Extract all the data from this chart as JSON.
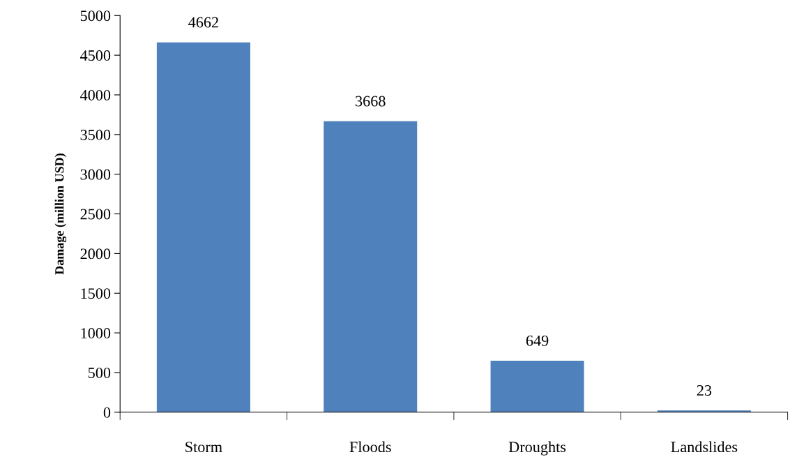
{
  "chart_data": {
    "type": "bar",
    "ylabel": "Damage (million USD)",
    "categories": [
      "Storm",
      "Floods",
      "Droughts",
      "Landslides"
    ],
    "values": [
      4662,
      3668,
      649,
      23
    ],
    "color": "#4f81bd",
    "ylim": [
      0,
      5000
    ],
    "yticks": [
      0,
      500,
      1000,
      1500,
      2000,
      2500,
      3000,
      3500,
      4000,
      4500,
      5000
    ],
    "data_labels": true,
    "grid": false,
    "legend": false
  }
}
